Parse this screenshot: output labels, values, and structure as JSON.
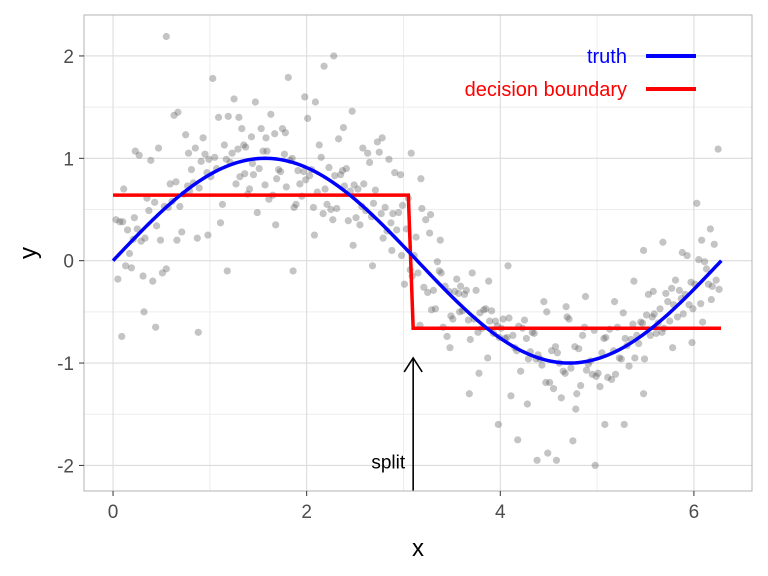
{
  "chart_data": {
    "type": "scatter",
    "title": "",
    "xlabel": "x",
    "ylabel": "y",
    "xlim": [
      -0.3,
      6.6
    ],
    "ylim": [
      -2.25,
      2.4
    ],
    "x_ticks": [
      0,
      2,
      4,
      6
    ],
    "x_tick_labels": [
      "0",
      "2",
      "4",
      "6"
    ],
    "y_ticks": [
      -2,
      -1,
      0,
      1,
      2
    ],
    "y_tick_labels": [
      "-2",
      "-1",
      "0",
      "1",
      "2"
    ],
    "grid": true,
    "legend_position": "top-right",
    "colors": {
      "points": "#555555",
      "truth": "#0000ff",
      "decision_boundary": "#ff0000",
      "grid_major": "#dcdcdc",
      "grid_minor": "#ededed",
      "panel_border": "#b3b3b3"
    },
    "series": [
      {
        "name": "truth",
        "type": "line",
        "function": "sin(x)",
        "x_range": [
          0,
          6.2832
        ]
      },
      {
        "name": "decision boundary",
        "type": "step",
        "x": [
          0,
          3.05,
          3.05,
          3.1,
          3.1,
          6.28
        ],
        "y": [
          0.64,
          0.64,
          0.64,
          -0.66,
          -0.66,
          -0.66
        ]
      }
    ],
    "scatter_points": [
      [
        0.03,
        0.4
      ],
      [
        0.05,
        -0.18
      ],
      [
        0.07,
        0.38
      ],
      [
        0.09,
        -0.74
      ],
      [
        0.11,
        0.7
      ],
      [
        0.13,
        -0.05
      ],
      [
        0.15,
        0.3
      ],
      [
        0.17,
        0.07
      ],
      [
        0.19,
        -0.07
      ],
      [
        0.21,
        0.21
      ],
      [
        0.23,
        1.07
      ],
      [
        0.25,
        0.31
      ],
      [
        0.27,
        1.03
      ],
      [
        0.29,
        0.19
      ],
      [
        0.31,
        -0.15
      ],
      [
        0.33,
        0.22
      ],
      [
        0.35,
        0.61
      ],
      [
        0.37,
        0.49
      ],
      [
        0.39,
        0.98
      ],
      [
        0.41,
        -0.2
      ],
      [
        0.43,
        0.57
      ],
      [
        0.45,
        0.34
      ],
      [
        0.47,
        1.1
      ],
      [
        0.49,
        0.2
      ],
      [
        0.51,
        -0.12
      ],
      [
        0.53,
        0.53
      ],
      [
        0.55,
        2.19
      ],
      [
        0.57,
        0.52
      ],
      [
        0.59,
        0.75
      ],
      [
        0.61,
        0.58
      ],
      [
        0.63,
        1.42
      ],
      [
        0.65,
        0.77
      ],
      [
        0.67,
        1.45
      ],
      [
        0.69,
        0.53
      ],
      [
        0.71,
        0.28
      ],
      [
        0.73,
        0.65
      ],
      [
        0.75,
        1.23
      ],
      [
        0.77,
        0.73
      ],
      [
        0.79,
        0.68
      ],
      [
        0.81,
        0.89
      ],
      [
        0.83,
        0.76
      ],
      [
        0.85,
        1.1
      ],
      [
        0.87,
        0.22
      ],
      [
        0.89,
        0.71
      ],
      [
        0.91,
        0.97
      ],
      [
        0.93,
        1.2
      ],
      [
        0.95,
        1.04
      ],
      [
        0.97,
        0.86
      ],
      [
        0.99,
        0.99
      ],
      [
        1.01,
        0.82
      ],
      [
        1.03,
        1.78
      ],
      [
        1.05,
        1.01
      ],
      [
        1.07,
        0.9
      ],
      [
        1.09,
        1.4
      ],
      [
        1.11,
        0.37
      ],
      [
        1.13,
        0.55
      ],
      [
        1.15,
        1.13
      ],
      [
        1.17,
        0.99
      ],
      [
        1.19,
        1.41
      ],
      [
        1.21,
        0.96
      ],
      [
        1.23,
        1.05
      ],
      [
        1.25,
        1.58
      ],
      [
        1.27,
        0.75
      ],
      [
        1.29,
        1.09
      ],
      [
        1.31,
        0.82
      ],
      [
        1.33,
        1.29
      ],
      [
        1.35,
        1.13
      ],
      [
        1.37,
        1.11
      ],
      [
        1.39,
        0.65
      ],
      [
        1.41,
        0.7
      ],
      [
        1.43,
        1.21
      ],
      [
        1.45,
        0.84
      ],
      [
        1.47,
        1.55
      ],
      [
        1.49,
        0.47
      ],
      [
        1.51,
        0.9
      ],
      [
        1.53,
        1.29
      ],
      [
        1.55,
        1.07
      ],
      [
        1.57,
        0.74
      ],
      [
        1.59,
        1.07
      ],
      [
        1.61,
        0.6
      ],
      [
        1.63,
        1.43
      ],
      [
        1.65,
        0.64
      ],
      [
        1.67,
        1.24
      ],
      [
        1.69,
        0.8
      ],
      [
        1.71,
        0.89
      ],
      [
        1.73,
        0.87
      ],
      [
        1.75,
        1.29
      ],
      [
        1.77,
        1.04
      ],
      [
        1.79,
        0.72
      ],
      [
        1.81,
        1.79
      ],
      [
        1.83,
        0.98
      ],
      [
        1.85,
        1.0
      ],
      [
        1.87,
        0.52
      ],
      [
        1.89,
        0.55
      ],
      [
        1.91,
        0.88
      ],
      [
        1.93,
        0.75
      ],
      [
        1.95,
        0.63
      ],
      [
        1.97,
        0.87
      ],
      [
        1.99,
        0.79
      ],
      [
        2.01,
        1.39
      ],
      [
        2.03,
        0.83
      ],
      [
        2.05,
        0.89
      ],
      [
        2.07,
        0.52
      ],
      [
        2.09,
        1.55
      ],
      [
        2.11,
        0.67
      ],
      [
        2.13,
        1.13
      ],
      [
        2.15,
        1.01
      ],
      [
        2.17,
        0.46
      ],
      [
        2.19,
        0.7
      ],
      [
        2.21,
        0.55
      ],
      [
        2.23,
        0.91
      ],
      [
        2.25,
        0.5
      ],
      [
        2.27,
        0.4
      ],
      [
        2.29,
        0.83
      ],
      [
        2.31,
        0.51
      ],
      [
        2.33,
        1.19
      ],
      [
        2.35,
        0.84
      ],
      [
        2.37,
        0.88
      ],
      [
        2.39,
        0.73
      ],
      [
        2.41,
        0.9
      ],
      [
        2.43,
        0.39
      ],
      [
        2.45,
        0.68
      ],
      [
        2.47,
        1.46
      ],
      [
        2.49,
        0.74
      ],
      [
        2.51,
        0.42
      ],
      [
        2.53,
        0.7
      ],
      [
        2.55,
        0.35
      ],
      [
        2.57,
        0.53
      ],
      [
        2.59,
        0.75
      ],
      [
        2.61,
        0.49
      ],
      [
        2.63,
        1.05
      ],
      [
        2.65,
        0.96
      ],
      [
        2.67,
        0.43
      ],
      [
        2.69,
        0.56
      ],
      [
        2.71,
        0.69
      ],
      [
        2.73,
        1.16
      ],
      [
        2.75,
        1.06
      ],
      [
        2.77,
        0.46
      ],
      [
        2.79,
        0.22
      ],
      [
        2.81,
        0.52
      ],
      [
        2.83,
        0.29
      ],
      [
        2.85,
        0.99
      ],
      [
        2.87,
        0.37
      ],
      [
        2.89,
        0.46
      ],
      [
        2.91,
        0.86
      ],
      [
        2.93,
        0.3
      ],
      [
        2.95,
        0.47
      ],
      [
        2.97,
        0.84
      ],
      [
        2.99,
        0.54
      ],
      [
        3.01,
        -0.23
      ],
      [
        3.03,
        0.31
      ],
      [
        3.05,
        0.61
      ],
      [
        3.07,
        -0.09
      ],
      [
        3.09,
        -0.15
      ],
      [
        3.11,
        0.05
      ],
      [
        3.13,
        0.23
      ],
      [
        3.15,
        -0.12
      ],
      [
        3.17,
        -0.63
      ],
      [
        3.19,
        0.51
      ],
      [
        3.21,
        -0.26
      ],
      [
        3.23,
        0.4
      ],
      [
        3.25,
        -0.31
      ],
      [
        3.27,
        0.27
      ],
      [
        3.29,
        -0.48
      ],
      [
        3.31,
        -0.29
      ],
      [
        3.33,
        -0.47
      ],
      [
        3.35,
        -0.01
      ],
      [
        3.37,
        -0.1
      ],
      [
        3.39,
        -0.12
      ],
      [
        3.41,
        -0.65
      ],
      [
        3.43,
        -0.25
      ],
      [
        3.45,
        -0.74
      ],
      [
        3.47,
        -0.3
      ],
      [
        3.49,
        -0.54
      ],
      [
        3.51,
        -0.57
      ],
      [
        3.53,
        -0.3
      ],
      [
        3.55,
        -0.18
      ],
      [
        3.57,
        -0.32
      ],
      [
        3.59,
        -0.25
      ],
      [
        3.61,
        -0.49
      ],
      [
        3.63,
        -0.33
      ],
      [
        3.65,
        -0.29
      ],
      [
        3.67,
        -0.58
      ],
      [
        3.69,
        -0.77
      ],
      [
        3.71,
        -0.12
      ],
      [
        3.73,
        -0.57
      ],
      [
        3.75,
        -0.29
      ],
      [
        3.77,
        -0.7
      ],
      [
        3.79,
        -0.51
      ],
      [
        3.81,
        -0.66
      ],
      [
        3.83,
        -0.48
      ],
      [
        3.85,
        -0.47
      ],
      [
        3.87,
        -0.95
      ],
      [
        3.89,
        -0.59
      ],
      [
        3.91,
        -0.49
      ],
      [
        3.93,
        -0.71
      ],
      [
        3.95,
        -0.59
      ],
      [
        3.97,
        -0.64
      ],
      [
        3.99,
        -0.75
      ],
      [
        4.01,
        -0.66
      ],
      [
        4.03,
        -0.57
      ],
      [
        4.05,
        -0.76
      ],
      [
        4.07,
        -0.75
      ],
      [
        4.09,
        -0.56
      ],
      [
        4.11,
        -1.32
      ],
      [
        4.13,
        -0.73
      ],
      [
        4.15,
        -0.85
      ],
      [
        4.17,
        -0.88
      ],
      [
        4.19,
        -0.64
      ],
      [
        4.21,
        -1.08
      ],
      [
        4.23,
        -0.66
      ],
      [
        4.25,
        -0.58
      ],
      [
        4.27,
        -0.76
      ],
      [
        4.29,
        -0.96
      ],
      [
        4.31,
        -0.89
      ],
      [
        4.33,
        -0.7
      ],
      [
        4.35,
        -0.71
      ],
      [
        4.37,
        -0.96
      ],
      [
        4.39,
        -0.92
      ],
      [
        4.41,
        -0.96
      ],
      [
        4.43,
        -1.02
      ],
      [
        4.45,
        -0.4
      ],
      [
        4.47,
        -1.19
      ],
      [
        4.49,
        -1.88
      ],
      [
        4.51,
        -1.19
      ],
      [
        4.53,
        -0.88
      ],
      [
        4.55,
        -1.25
      ],
      [
        4.57,
        -0.84
      ],
      [
        4.59,
        -0.9
      ],
      [
        4.61,
        -1.0
      ],
      [
        4.63,
        -1.34
      ],
      [
        4.65,
        -1.08
      ],
      [
        4.67,
        -1.1
      ],
      [
        4.69,
        -0.55
      ],
      [
        4.71,
        -0.57
      ],
      [
        4.73,
        -1.05
      ],
      [
        4.75,
        -1.76
      ],
      [
        4.77,
        -0.84
      ],
      [
        4.79,
        -1.3
      ],
      [
        4.81,
        -0.86
      ],
      [
        4.83,
        -1.22
      ],
      [
        4.85,
        -0.73
      ],
      [
        4.87,
        -0.65
      ],
      [
        4.89,
        -1.07
      ],
      [
        4.91,
        -1.01
      ],
      [
        4.93,
        -0.98
      ],
      [
        4.95,
        -1.11
      ],
      [
        4.97,
        -0.68
      ],
      [
        4.99,
        -1.13
      ],
      [
        5.01,
        -1.1
      ],
      [
        5.03,
        -1.23
      ],
      [
        5.05,
        -0.9
      ],
      [
        5.07,
        -0.76
      ],
      [
        5.09,
        -0.75
      ],
      [
        5.11,
        -1.14
      ],
      [
        5.13,
        -0.67
      ],
      [
        5.15,
        -1.16
      ],
      [
        5.17,
        -0.88
      ],
      [
        5.19,
        -1.11
      ],
      [
        5.21,
        -0.65
      ],
      [
        5.23,
        -0.95
      ],
      [
        5.25,
        -0.96
      ],
      [
        5.27,
        -0.51
      ],
      [
        5.29,
        -0.76
      ],
      [
        5.31,
        -0.83
      ],
      [
        5.33,
        -1.03
      ],
      [
        5.35,
        -0.77
      ],
      [
        5.37,
        -0.62
      ],
      [
        5.39,
        -0.95
      ],
      [
        5.41,
        -0.73
      ],
      [
        5.43,
        -0.81
      ],
      [
        5.45,
        -0.6
      ],
      [
        5.47,
        -0.61
      ],
      [
        5.49,
        -0.96
      ],
      [
        5.51,
        -0.53
      ],
      [
        5.53,
        -0.33
      ],
      [
        5.55,
        -0.73
      ],
      [
        5.57,
        -0.55
      ],
      [
        5.59,
        -0.52
      ],
      [
        5.61,
        -0.71
      ],
      [
        5.63,
        -0.61
      ],
      [
        5.65,
        -0.47
      ],
      [
        5.67,
        -0.7
      ],
      [
        5.69,
        -0.66
      ],
      [
        5.71,
        -0.32
      ],
      [
        5.73,
        -0.4
      ],
      [
        5.75,
        -0.59
      ],
      [
        5.77,
        -0.27
      ],
      [
        5.79,
        -0.43
      ],
      [
        5.81,
        -0.19
      ],
      [
        5.83,
        -0.55
      ],
      [
        5.85,
        -0.29
      ],
      [
        5.87,
        -0.37
      ],
      [
        5.89,
        -0.52
      ],
      [
        5.91,
        -0.33
      ],
      [
        5.93,
        0.05
      ],
      [
        5.95,
        -0.43
      ],
      [
        5.97,
        -0.21
      ],
      [
        5.99,
        -0.47
      ],
      [
        6.01,
        -0.23
      ],
      [
        6.03,
        0.56
      ],
      [
        6.05,
        0.01
      ],
      [
        6.07,
        -0.42
      ],
      [
        6.09,
        -0.6
      ],
      [
        6.11,
        -0.01
      ],
      [
        6.13,
        -0.08
      ],
      [
        6.15,
        -0.23
      ],
      [
        6.17,
        0.31
      ],
      [
        6.19,
        -0.25
      ],
      [
        6.21,
        0.16
      ],
      [
        6.23,
        -0.19
      ],
      [
        6.25,
        1.09
      ],
      [
        0.1,
        0.38
      ],
      [
        0.22,
        0.42
      ],
      [
        0.32,
        -0.5
      ],
      [
        0.44,
        -0.65
      ],
      [
        0.55,
        -0.08
      ],
      [
        0.66,
        0.2
      ],
      [
        0.78,
        1.05
      ],
      [
        0.88,
        -0.7
      ],
      [
        0.98,
        0.25
      ],
      [
        1.18,
        -0.1
      ],
      [
        1.3,
        1.4
      ],
      [
        1.36,
        0.85
      ],
      [
        1.44,
        0.95
      ],
      [
        1.58,
        1.2
      ],
      [
        1.68,
        0.35
      ],
      [
        1.78,
        1.25
      ],
      [
        1.86,
        -0.1
      ],
      [
        1.98,
        1.6
      ],
      [
        2.08,
        0.25
      ],
      [
        2.18,
        1.9
      ],
      [
        2.28,
        2.0
      ],
      [
        2.38,
        1.3
      ],
      [
        2.48,
        0.15
      ],
      [
        2.58,
        1.1
      ],
      [
        2.68,
        -0.05
      ],
      [
        2.78,
        1.2
      ],
      [
        2.88,
        0.1
      ],
      [
        2.98,
        0.05
      ],
      [
        3.08,
        1.05
      ],
      [
        3.18,
        0.8
      ],
      [
        3.28,
        0.45
      ],
      [
        3.38,
        0.2
      ],
      [
        3.48,
        -0.85
      ],
      [
        3.58,
        -0.5
      ],
      [
        3.68,
        -1.3
      ],
      [
        3.78,
        -1.1
      ],
      [
        3.88,
        -0.2
      ],
      [
        3.98,
        -1.6
      ],
      [
        4.08,
        -0.05
      ],
      [
        4.18,
        -1.75
      ],
      [
        4.28,
        -1.4
      ],
      [
        4.38,
        -1.95
      ],
      [
        4.48,
        -0.5
      ],
      [
        4.58,
        -1.95
      ],
      [
        4.68,
        -0.45
      ],
      [
        4.78,
        -1.45
      ],
      [
        4.88,
        -0.35
      ],
      [
        4.98,
        -2.0
      ],
      [
        5.08,
        -1.6
      ],
      [
        5.18,
        -0.4
      ],
      [
        5.28,
        -1.6
      ],
      [
        5.38,
        -0.2
      ],
      [
        5.48,
        -1.3
      ],
      [
        5.58,
        -0.3
      ],
      [
        5.68,
        0.18
      ],
      [
        5.78,
        -0.85
      ],
      [
        5.88,
        0.08
      ],
      [
        5.98,
        -0.8
      ],
      [
        6.08,
        0.2
      ],
      [
        6.18,
        -0.38
      ],
      [
        6.26,
        -0.28
      ],
      [
        5.48,
        0.1
      ]
    ],
    "annotations": [
      {
        "text": "split",
        "arrow_x": 3.1,
        "arrow_tip_y": -0.95,
        "arrow_base_y": -2.25
      }
    ]
  }
}
